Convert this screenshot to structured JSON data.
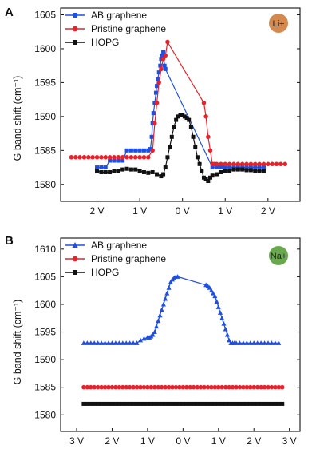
{
  "chart_data": [
    {
      "type": "line",
      "panel_letter": "A",
      "ion_badge": {
        "label": "Li+",
        "color": "#d48a4e"
      },
      "ylabel": "G band shift (cm⁻¹)",
      "ylim": [
        1577.5,
        1606
      ],
      "yticks": [
        1580,
        1585,
        1590,
        1595,
        1600,
        1605
      ],
      "x_tick_labels": [
        "2 V",
        "1 V",
        "0 V",
        "1 V",
        "2 V"
      ],
      "x_tick_positions": [
        -2,
        -1,
        0,
        1,
        2
      ],
      "xlim": [
        -2.85,
        2.75
      ],
      "legend_position": "top-left",
      "series": [
        {
          "name": "AB graphene",
          "color": "#1f4fe0",
          "marker": "square",
          "x": [
            -2.0,
            -1.9,
            -1.8,
            -1.7,
            -1.6,
            -1.5,
            -1.4,
            -1.3,
            -1.2,
            -1.1,
            -1.0,
            -0.9,
            -0.8,
            -0.75,
            -0.72,
            -0.7,
            -0.68,
            -0.65,
            -0.62,
            -0.6,
            -0.58,
            -0.55,
            -0.52,
            -0.5,
            -0.48,
            -0.45,
            -0.42,
            -0.4,
            0.7,
            0.8,
            0.9,
            1.0,
            1.1,
            1.2,
            1.3,
            1.4,
            1.5,
            1.6,
            1.7,
            1.8,
            1.9
          ],
          "y": [
            1582.5,
            1582.5,
            1582.5,
            1583.5,
            1583.5,
            1583.5,
            1583.5,
            1585,
            1585,
            1585,
            1585,
            1585,
            1585,
            1585.2,
            1587,
            1589,
            1590.5,
            1592,
            1593.5,
            1594.5,
            1595.5,
            1596.5,
            1597.5,
            1598.5,
            1599,
            1599.5,
            1597.5,
            1597,
            1582.5,
            1582.5,
            1582.5,
            1582.5,
            1582.5,
            1582.5,
            1582.5,
            1582.5,
            1582.5,
            1582.5,
            1582.5,
            1582.5,
            1582.5
          ]
        },
        {
          "name": "Pristine graphene",
          "color": "#e8212a",
          "marker": "circle",
          "x": [
            -2.6,
            -2.5,
            -2.4,
            -2.3,
            -2.2,
            -2.1,
            -2.0,
            -1.9,
            -1.8,
            -1.7,
            -1.6,
            -1.5,
            -1.4,
            -1.3,
            -1.2,
            -1.1,
            -1.0,
            -0.9,
            -0.8,
            -0.7,
            -0.65,
            -0.6,
            -0.55,
            -0.5,
            -0.45,
            -0.4,
            -0.35,
            0.5,
            0.55,
            0.6,
            0.65,
            0.7,
            0.75,
            0.8,
            0.9,
            1.0,
            1.1,
            1.2,
            1.3,
            1.4,
            1.5,
            1.6,
            1.7,
            1.8,
            1.9,
            2.0,
            2.1,
            2.2,
            2.3,
            2.4
          ],
          "y": [
            1584,
            1584,
            1584,
            1584,
            1584,
            1584,
            1584,
            1584,
            1584,
            1584,
            1584,
            1584,
            1584,
            1584,
            1584,
            1584,
            1584,
            1584,
            1584,
            1585,
            1589,
            1592,
            1595,
            1597,
            1598.5,
            1599,
            1601,
            1592,
            1590,
            1587,
            1585,
            1583,
            1583,
            1583,
            1583,
            1583,
            1583,
            1583,
            1583,
            1583,
            1583,
            1583,
            1583,
            1583,
            1583,
            1583,
            1583,
            1583,
            1583,
            1583
          ]
        },
        {
          "name": "HOPG",
          "color": "#111111",
          "marker": "square",
          "x": [
            -2.0,
            -1.9,
            -1.8,
            -1.7,
            -1.6,
            -1.5,
            -1.4,
            -1.3,
            -1.2,
            -1.1,
            -1.0,
            -0.9,
            -0.8,
            -0.7,
            -0.6,
            -0.5,
            -0.45,
            -0.4,
            -0.35,
            -0.3,
            -0.25,
            -0.2,
            -0.15,
            -0.1,
            -0.05,
            0.0,
            0.05,
            0.1,
            0.15,
            0.2,
            0.25,
            0.3,
            0.35,
            0.4,
            0.45,
            0.5,
            0.55,
            0.6,
            0.65,
            0.7,
            0.8,
            0.9,
            1.0,
            1.1,
            1.2,
            1.3,
            1.4,
            1.5,
            1.6,
            1.7,
            1.8,
            1.9
          ],
          "y": [
            1582,
            1581.8,
            1581.8,
            1581.8,
            1582,
            1582,
            1582.2,
            1582.3,
            1582.2,
            1582.2,
            1582,
            1581.8,
            1581.7,
            1581.8,
            1581.5,
            1581.2,
            1581.5,
            1582.5,
            1584,
            1585.5,
            1587,
            1588.5,
            1589.5,
            1590,
            1590.2,
            1590.2,
            1590,
            1589.8,
            1589.5,
            1588.5,
            1587,
            1585.5,
            1584,
            1583,
            1582,
            1581,
            1580.8,
            1580.5,
            1581,
            1581.3,
            1581.5,
            1581.8,
            1582,
            1582,
            1582.2,
            1582.2,
            1582.2,
            1582.1,
            1582.1,
            1582,
            1582,
            1582
          ]
        }
      ]
    },
    {
      "type": "line",
      "panel_letter": "B",
      "ion_badge": {
        "label": "Na+",
        "color": "#6aa84f"
      },
      "ylabel": "G band shift (cm⁻¹)",
      "ylim": [
        1577,
        1612
      ],
      "yticks": [
        1580,
        1585,
        1590,
        1595,
        1600,
        1605,
        1610
      ],
      "x_tick_labels": [
        "3 V",
        "2 V",
        "1 V",
        "0 V",
        "1 V",
        "2 V",
        "3 V"
      ],
      "x_tick_positions": [
        -3,
        -2,
        -1,
        0,
        1,
        2,
        3
      ],
      "xlim": [
        -3.45,
        3.3
      ],
      "legend_position": "top-left",
      "series": [
        {
          "name": "AB graphene",
          "color": "#1f4fe0",
          "marker": "triangle",
          "x": [
            -2.8,
            -2.7,
            -2.6,
            -2.5,
            -2.4,
            -2.3,
            -2.2,
            -2.1,
            -2.0,
            -1.9,
            -1.8,
            -1.7,
            -1.6,
            -1.5,
            -1.4,
            -1.3,
            -1.2,
            -1.1,
            -1.0,
            -0.95,
            -0.9,
            -0.85,
            -0.8,
            -0.75,
            -0.7,
            -0.65,
            -0.6,
            -0.55,
            -0.5,
            -0.45,
            -0.4,
            -0.35,
            -0.3,
            -0.25,
            -0.2,
            -0.15,
            0.65,
            0.7,
            0.75,
            0.8,
            0.85,
            0.9,
            0.95,
            1.0,
            1.05,
            1.1,
            1.15,
            1.2,
            1.25,
            1.3,
            1.35,
            1.4,
            1.45,
            1.5,
            1.6,
            1.7,
            1.8,
            1.9,
            2.0,
            2.1,
            2.2,
            2.3,
            2.4,
            2.5,
            2.6,
            2.7
          ],
          "y": [
            1593,
            1593,
            1593,
            1593,
            1593,
            1593,
            1593,
            1593,
            1593,
            1593,
            1593,
            1593,
            1593,
            1593,
            1593,
            1593,
            1593.5,
            1593.8,
            1594,
            1594,
            1594.2,
            1594.5,
            1595,
            1596,
            1597,
            1598,
            1599,
            1600,
            1601,
            1602,
            1603,
            1604,
            1604.5,
            1604.8,
            1605,
            1605,
            1603.5,
            1603.3,
            1603,
            1602.5,
            1602,
            1601.5,
            1600.5,
            1599.5,
            1598.5,
            1597.5,
            1596.5,
            1595.5,
            1594.5,
            1593.5,
            1593,
            1593,
            1593,
            1593,
            1593,
            1593,
            1593,
            1593,
            1593,
            1593,
            1593,
            1593,
            1593,
            1593,
            1593,
            1593
          ]
        },
        {
          "name": "Pristine graphene",
          "color": "#e8212a",
          "marker": "circle",
          "x": [
            -2.8,
            -2.7,
            -2.6,
            -2.5,
            -2.4,
            -2.3,
            -2.2,
            -2.1,
            -2.0,
            -1.9,
            -1.8,
            -1.7,
            -1.6,
            -1.5,
            -1.4,
            -1.3,
            -1.2,
            -1.1,
            -1.0,
            -0.9,
            -0.8,
            -0.7,
            -0.6,
            -0.5,
            -0.4,
            -0.3,
            -0.2,
            -0.1,
            0.0,
            0.1,
            0.2,
            0.3,
            0.4,
            0.5,
            0.6,
            0.7,
            0.8,
            0.9,
            1.0,
            1.1,
            1.2,
            1.3,
            1.4,
            1.5,
            1.6,
            1.7,
            1.8,
            1.9,
            2.0,
            2.1,
            2.2,
            2.3,
            2.4,
            2.5,
            2.6,
            2.7,
            2.8
          ],
          "y": [
            1585,
            1585,
            1585,
            1585,
            1585,
            1585,
            1585,
            1585,
            1585,
            1585,
            1585,
            1585,
            1585,
            1585,
            1585,
            1585,
            1585,
            1585,
            1585,
            1585,
            1585,
            1585,
            1585,
            1585,
            1585,
            1585,
            1585,
            1585,
            1585,
            1585,
            1585,
            1585,
            1585,
            1585,
            1585,
            1585,
            1585,
            1585,
            1585,
            1585,
            1585,
            1585,
            1585,
            1585,
            1585,
            1585,
            1585,
            1585,
            1585,
            1585,
            1585,
            1585,
            1585,
            1585,
            1585,
            1585,
            1585
          ]
        },
        {
          "name": "HOPG",
          "color": "#111111",
          "marker": "square",
          "x": [
            -2.8,
            -2.7,
            -2.6,
            -2.5,
            -2.4,
            -2.3,
            -2.2,
            -2.1,
            -2.0,
            -1.9,
            -1.8,
            -1.7,
            -1.6,
            -1.5,
            -1.4,
            -1.3,
            -1.2,
            -1.1,
            -1.0,
            -0.9,
            -0.8,
            -0.7,
            -0.6,
            -0.5,
            -0.4,
            -0.3,
            -0.2,
            -0.1,
            0.0,
            0.1,
            0.2,
            0.3,
            0.4,
            0.5,
            0.6,
            0.7,
            0.8,
            0.9,
            1.0,
            1.1,
            1.2,
            1.3,
            1.4,
            1.5,
            1.6,
            1.7,
            1.8,
            1.9,
            2.0,
            2.1,
            2.2,
            2.3,
            2.4,
            2.5,
            2.6,
            2.7,
            2.8
          ],
          "y": [
            1582,
            1582,
            1582,
            1582,
            1582,
            1582,
            1582,
            1582,
            1582,
            1582,
            1582,
            1582,
            1582,
            1582,
            1582,
            1582,
            1582,
            1582,
            1582,
            1582,
            1582,
            1582,
            1582,
            1582,
            1582,
            1582,
            1582,
            1582,
            1582,
            1582,
            1582,
            1582,
            1582,
            1582,
            1582,
            1582,
            1582,
            1582,
            1582,
            1582,
            1582,
            1582,
            1582,
            1582,
            1582,
            1582,
            1582,
            1582,
            1582,
            1582,
            1582,
            1582,
            1582,
            1582,
            1582,
            1582,
            1582
          ]
        }
      ]
    }
  ]
}
